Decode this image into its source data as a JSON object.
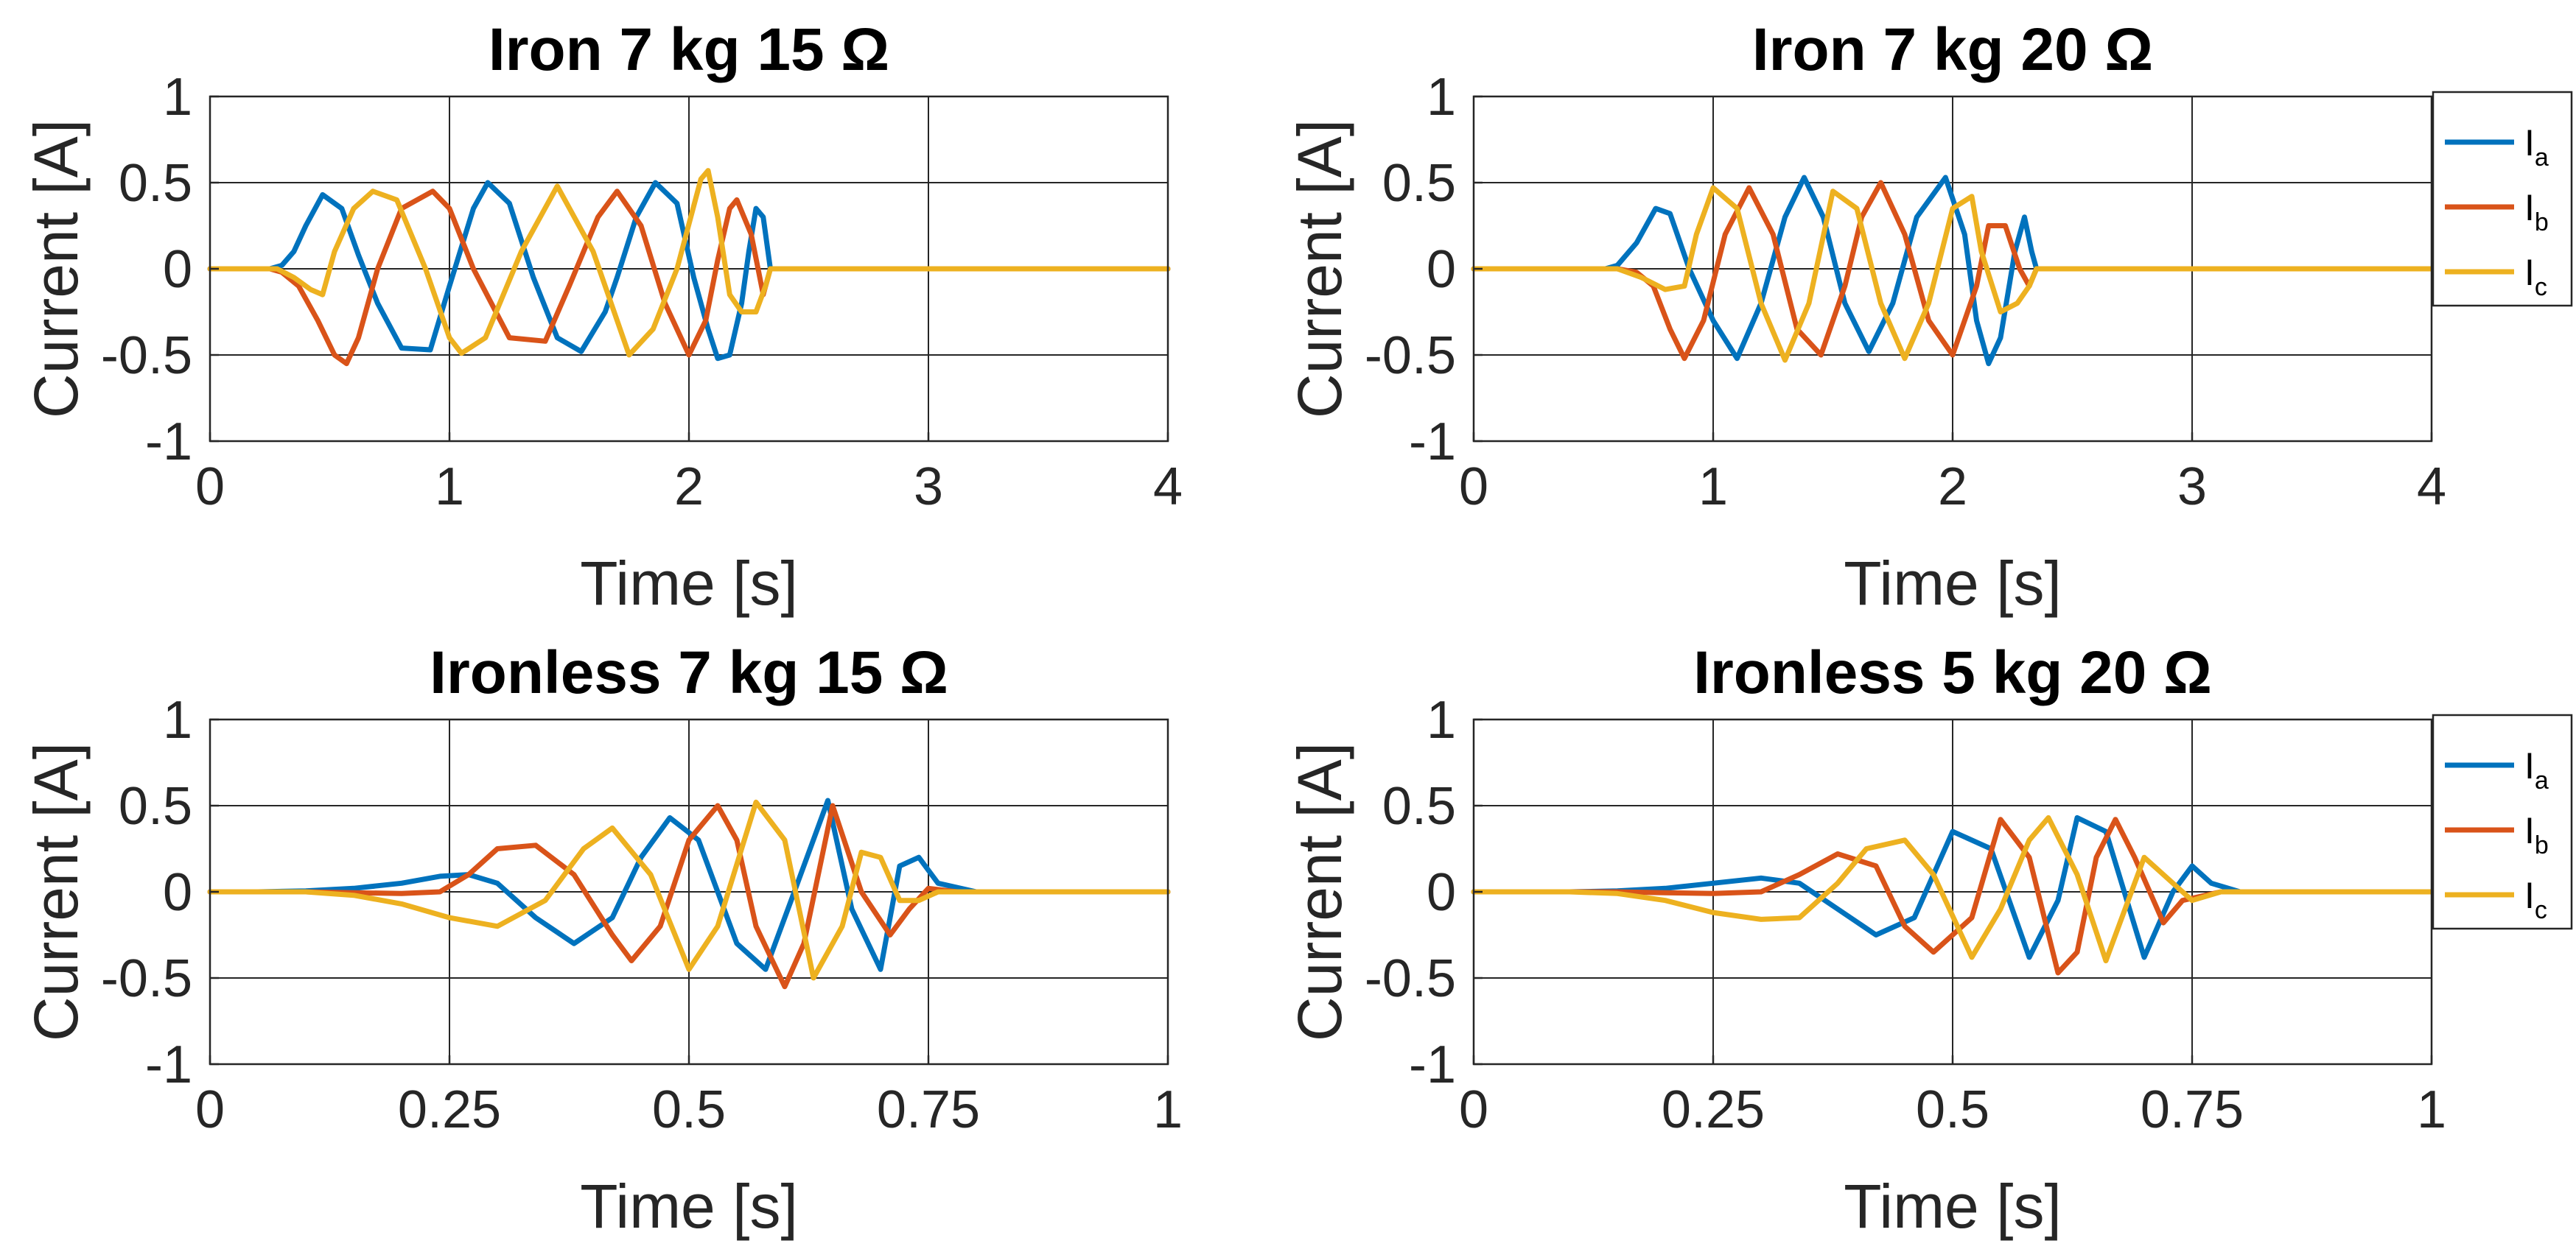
{
  "colors": {
    "Ia": "#0072BD",
    "Ib": "#D95319",
    "Ic": "#EDB120"
  },
  "chart_data": [
    {
      "type": "line",
      "title": "Iron 7 kg 15 Ω",
      "xlabel": "Time [s]",
      "ylabel": "Current [A]",
      "xlim": [
        0,
        4
      ],
      "ylim": [
        -1,
        1
      ],
      "xticks": [
        0,
        1,
        2,
        3,
        4
      ],
      "xticklabels": [
        "0",
        "1",
        "2",
        "3",
        "4"
      ],
      "yticks": [
        1,
        0.5,
        0,
        -0.5,
        -1
      ],
      "yticklabels": [
        "1",
        "0.5",
        "0",
        "-0.5",
        "-1"
      ],
      "grid": true,
      "legend": null,
      "series": [
        {
          "name": "Ia",
          "x": [
            0,
            0.25,
            0.3,
            0.35,
            0.4,
            0.47,
            0.55,
            0.62,
            0.7,
            0.8,
            0.92,
            1.0,
            1.1,
            1.16,
            1.25,
            1.35,
            1.45,
            1.55,
            1.65,
            1.7,
            1.78,
            1.86,
            1.95,
            2.02,
            2.08,
            2.12,
            2.17,
            2.22,
            2.25,
            2.28,
            2.31,
            2.34,
            4.0
          ],
          "y": [
            0,
            0,
            0.02,
            0.1,
            0.25,
            0.43,
            0.35,
            0.08,
            -0.2,
            -0.46,
            -0.47,
            -0.1,
            0.35,
            0.5,
            0.38,
            -0.05,
            -0.4,
            -0.48,
            -0.25,
            -0.05,
            0.3,
            0.5,
            0.38,
            -0.05,
            -0.35,
            -0.52,
            -0.5,
            -0.2,
            0.1,
            0.35,
            0.3,
            0,
            0
          ]
        },
        {
          "name": "Ib",
          "x": [
            0,
            0.25,
            0.3,
            0.37,
            0.45,
            0.52,
            0.57,
            0.62,
            0.7,
            0.8,
            0.93,
            1.0,
            1.1,
            1.25,
            1.4,
            1.5,
            1.62,
            1.7,
            1.8,
            1.9,
            2.0,
            2.07,
            2.12,
            2.17,
            2.2,
            2.26,
            2.31,
            2.34,
            4.0
          ],
          "y": [
            0,
            0,
            -0.02,
            -0.1,
            -0.3,
            -0.5,
            -0.55,
            -0.4,
            0.0,
            0.35,
            0.45,
            0.35,
            0.0,
            -0.4,
            -0.42,
            -0.1,
            0.3,
            0.45,
            0.25,
            -0.2,
            -0.5,
            -0.3,
            0.05,
            0.35,
            0.4,
            0.2,
            -0.15,
            0,
            0
          ]
        },
        {
          "name": "Ic",
          "x": [
            0,
            0.28,
            0.35,
            0.42,
            0.47,
            0.52,
            0.6,
            0.68,
            0.78,
            0.9,
            1.0,
            1.05,
            1.15,
            1.3,
            1.45,
            1.6,
            1.75,
            1.85,
            1.95,
            2.05,
            2.08,
            2.12,
            2.17,
            2.22,
            2.28,
            2.32,
            2.34,
            4.0
          ],
          "y": [
            0,
            0,
            -0.05,
            -0.12,
            -0.15,
            0.1,
            0.35,
            0.45,
            0.4,
            0.0,
            -0.4,
            -0.49,
            -0.4,
            0.1,
            0.48,
            0.1,
            -0.5,
            -0.35,
            0.0,
            0.52,
            0.57,
            0.3,
            -0.15,
            -0.25,
            -0.25,
            -0.1,
            0,
            0
          ]
        }
      ]
    },
    {
      "type": "line",
      "title": "Iron 7 kg 20 Ω",
      "xlabel": "Time [s]",
      "ylabel": "Current [A]",
      "xlim": [
        0,
        4
      ],
      "ylim": [
        -1,
        1
      ],
      "xticks": [
        0,
        1,
        2,
        3,
        4
      ],
      "xticklabels": [
        "0",
        "1",
        "2",
        "3",
        "4"
      ],
      "yticks": [
        1,
        0.5,
        0,
        -0.5,
        -1
      ],
      "yticklabels": [
        "1",
        "0.5",
        "0",
        "-0.5",
        "-1"
      ],
      "grid": true,
      "legend": {
        "position": "outside-right",
        "entries": [
          "I_a",
          "I_b",
          "I_c"
        ],
        "base": "I",
        "subs": [
          "a",
          "b",
          "c"
        ]
      },
      "series": [
        {
          "name": "Ia",
          "x": [
            0,
            0.55,
            0.6,
            0.68,
            0.76,
            0.82,
            0.9,
            1.0,
            1.1,
            1.2,
            1.3,
            1.38,
            1.46,
            1.55,
            1.65,
            1.75,
            1.85,
            1.97,
            2.05,
            2.1,
            2.15,
            2.2,
            2.26,
            2.3,
            2.33,
            2.35,
            4.0
          ],
          "y": [
            0,
            0,
            0.02,
            0.15,
            0.35,
            0.32,
            0.0,
            -0.3,
            -0.52,
            -0.2,
            0.3,
            0.53,
            0.3,
            -0.2,
            -0.48,
            -0.2,
            0.3,
            0.53,
            0.2,
            -0.3,
            -0.55,
            -0.4,
            0.1,
            0.3,
            0.1,
            0,
            0
          ]
        },
        {
          "name": "Ib",
          "x": [
            0,
            0.6,
            0.68,
            0.75,
            0.82,
            0.88,
            0.96,
            1.05,
            1.15,
            1.25,
            1.35,
            1.45,
            1.55,
            1.62,
            1.7,
            1.8,
            1.9,
            2.0,
            2.1,
            2.15,
            2.22,
            2.28,
            2.32,
            2.35,
            4.0
          ],
          "y": [
            0,
            0,
            -0.02,
            -0.1,
            -0.35,
            -0.52,
            -0.3,
            0.2,
            0.47,
            0.2,
            -0.35,
            -0.5,
            -0.1,
            0.3,
            0.5,
            0.2,
            -0.3,
            -0.5,
            -0.1,
            0.25,
            0.25,
            0,
            -0.1,
            0,
            0
          ]
        },
        {
          "name": "Ic",
          "x": [
            0,
            0.6,
            0.7,
            0.8,
            0.88,
            0.93,
            1.0,
            1.1,
            1.2,
            1.3,
            1.4,
            1.5,
            1.6,
            1.7,
            1.8,
            1.9,
            2.0,
            2.08,
            2.12,
            2.2,
            2.27,
            2.32,
            2.35,
            4.0
          ],
          "y": [
            0,
            0,
            -0.05,
            -0.12,
            -0.1,
            0.2,
            0.47,
            0.35,
            -0.2,
            -0.53,
            -0.2,
            0.45,
            0.35,
            -0.2,
            -0.52,
            -0.2,
            0.35,
            0.42,
            0.1,
            -0.25,
            -0.2,
            -0.1,
            0,
            0
          ]
        }
      ]
    },
    {
      "type": "line",
      "title": "Ironless 7 kg 15 Ω",
      "xlabel": "Time [s]",
      "ylabel": "Current [A]",
      "xlim": [
        0,
        1
      ],
      "ylim": [
        -1,
        1
      ],
      "xticks": [
        0,
        0.25,
        0.5,
        0.75,
        1
      ],
      "xticklabels": [
        "0",
        "0.25",
        "0.5",
        "0.75",
        "1"
      ],
      "yticks": [
        1,
        0.5,
        0,
        -0.5,
        -1
      ],
      "yticklabels": [
        "1",
        "0.5",
        "0",
        "-0.5",
        "-1"
      ],
      "grid": true,
      "legend": null,
      "series": [
        {
          "name": "Ia",
          "x": [
            0,
            0.05,
            0.1,
            0.15,
            0.2,
            0.24,
            0.27,
            0.3,
            0.34,
            0.38,
            0.42,
            0.45,
            0.48,
            0.51,
            0.55,
            0.58,
            0.61,
            0.645,
            0.67,
            0.7,
            0.72,
            0.74,
            0.76,
            0.8,
            1.0
          ],
          "y": [
            0,
            0,
            0.005,
            0.02,
            0.05,
            0.09,
            0.1,
            0.05,
            -0.15,
            -0.3,
            -0.15,
            0.2,
            0.43,
            0.3,
            -0.3,
            -0.45,
            0.0,
            0.53,
            -0.1,
            -0.45,
            0.15,
            0.2,
            0.05,
            0,
            0
          ]
        },
        {
          "name": "Ib",
          "x": [
            0,
            0.1,
            0.15,
            0.2,
            0.24,
            0.27,
            0.3,
            0.34,
            0.38,
            0.42,
            0.44,
            0.47,
            0.5,
            0.53,
            0.55,
            0.57,
            0.6,
            0.62,
            0.65,
            0.68,
            0.71,
            0.73,
            0.75,
            0.78,
            1.0
          ],
          "y": [
            0,
            0,
            -0.005,
            -0.01,
            0.0,
            0.1,
            0.25,
            0.27,
            0.1,
            -0.25,
            -0.4,
            -0.2,
            0.3,
            0.5,
            0.3,
            -0.2,
            -0.55,
            -0.3,
            0.5,
            0.0,
            -0.25,
            -0.1,
            0.02,
            0,
            0
          ]
        },
        {
          "name": "Ic",
          "x": [
            0,
            0.1,
            0.15,
            0.2,
            0.25,
            0.3,
            0.35,
            0.39,
            0.42,
            0.46,
            0.5,
            0.53,
            0.57,
            0.6,
            0.63,
            0.66,
            0.68,
            0.7,
            0.72,
            0.74,
            0.76,
            0.8,
            1.0
          ],
          "y": [
            0,
            0,
            -0.02,
            -0.07,
            -0.15,
            -0.2,
            -0.05,
            0.25,
            0.37,
            0.1,
            -0.45,
            -0.2,
            0.52,
            0.3,
            -0.5,
            -0.2,
            0.23,
            0.2,
            -0.05,
            -0.05,
            0.0,
            0,
            0
          ]
        }
      ]
    },
    {
      "type": "line",
      "title": "Ironless 5 kg 20 Ω",
      "xlabel": "Time [s]",
      "ylabel": "Current [A]",
      "xlim": [
        0,
        1
      ],
      "ylim": [
        -1,
        1
      ],
      "xticks": [
        0,
        0.25,
        0.5,
        0.75,
        1
      ],
      "xticklabels": [
        "0",
        "0.25",
        "0.5",
        "0.75",
        "1"
      ],
      "yticks": [
        1,
        0.5,
        0,
        -0.5,
        -1
      ],
      "yticklabels": [
        "1",
        "0.5",
        "0",
        "-0.5",
        "-1"
      ],
      "grid": true,
      "legend": {
        "position": "outside-right",
        "entries": [
          "I_a",
          "I_b",
          "I_c"
        ],
        "base": "I",
        "subs": [
          "a",
          "b",
          "c"
        ]
      },
      "series": [
        {
          "name": "Ia",
          "x": [
            0,
            0.1,
            0.15,
            0.2,
            0.25,
            0.3,
            0.34,
            0.38,
            0.42,
            0.46,
            0.5,
            0.54,
            0.58,
            0.61,
            0.63,
            0.66,
            0.7,
            0.73,
            0.75,
            0.77,
            0.8,
            1.0
          ],
          "y": [
            0,
            0,
            0.005,
            0.02,
            0.05,
            0.08,
            0.05,
            -0.1,
            -0.25,
            -0.15,
            0.35,
            0.25,
            -0.38,
            -0.05,
            0.43,
            0.35,
            -0.38,
            0.0,
            0.15,
            0.05,
            0,
            0
          ]
        },
        {
          "name": "Ib",
          "x": [
            0,
            0.15,
            0.2,
            0.25,
            0.3,
            0.34,
            0.38,
            0.42,
            0.45,
            0.48,
            0.52,
            0.55,
            0.58,
            0.61,
            0.63,
            0.65,
            0.67,
            0.69,
            0.72,
            0.74,
            0.78,
            1.0
          ],
          "y": [
            0,
            0,
            -0.005,
            -0.01,
            0.0,
            0.1,
            0.22,
            0.15,
            -0.2,
            -0.35,
            -0.15,
            0.42,
            0.2,
            -0.47,
            -0.35,
            0.2,
            0.42,
            0.2,
            -0.18,
            -0.05,
            0,
            0
          ]
        },
        {
          "name": "Ic",
          "x": [
            0,
            0.1,
            0.15,
            0.2,
            0.25,
            0.3,
            0.34,
            0.38,
            0.41,
            0.45,
            0.48,
            0.52,
            0.55,
            0.58,
            0.6,
            0.63,
            0.66,
            0.7,
            0.73,
            0.75,
            0.78,
            1.0
          ],
          "y": [
            0,
            0,
            -0.01,
            -0.05,
            -0.12,
            -0.16,
            -0.15,
            0.05,
            0.25,
            0.3,
            0.1,
            -0.38,
            -0.1,
            0.3,
            0.43,
            0.1,
            -0.4,
            0.2,
            0.05,
            -0.05,
            0,
            0
          ]
        }
      ]
    }
  ]
}
